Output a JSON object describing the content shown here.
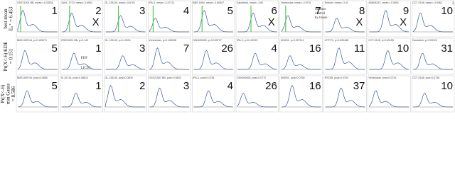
{
  "corner_label": "2",
  "rows": [
    {
      "label": [
        "best mean",
        "Eₛ⁺ = 6.453"
      ],
      "panels": [
        {
          "title": "GSE21501 BB, mean=-4.02634",
          "rank": "1",
          "mark": null
        },
        {
          "title": "JAH1, 3713, mean=-3.6992",
          "rank": "2",
          "mark": "X"
        },
        {
          "title": "GL-155-55, mean=-5.6701",
          "rank": "3",
          "mark": null
        },
        {
          "title": "IPA-3, mean=-3.47722",
          "rank": "4",
          "mark": null
        },
        {
          "title": "BNS-5464, mean=-3.60847",
          "rank": "5",
          "mark": null
        },
        {
          "title": "Salubrinal, mean=-3.62",
          "rank": "6",
          "mark": "X"
        },
        {
          "title": "Venetoclax, mean=-3.9732",
          "rank": "7",
          "mark": null
        },
        {
          "title": "Eribulin, mean=-3.41",
          "rank": "8",
          "mark": "X"
        },
        {
          "title": "AS605242, mean=-3.3993",
          "rank": "9",
          "mark": "X"
        },
        {
          "title": "CCT-0108, mean=-3.9462",
          "rank": "10",
          "mark": null
        }
      ]
    },
    {
      "label": [
        "Pr(X<-6) KDE",
        "= 0.151"
      ],
      "panels": [
        {
          "title": "BMS-509744, p=0.150071",
          "rank": "5",
          "mark": null
        },
        {
          "title": "GSE21501 BB, p=0.142",
          "rank": "1",
          "mark": null
        },
        {
          "title": "GL-155-55, p=0.13931",
          "rank": "3",
          "mark": null
        },
        {
          "title": "Venetoclax, p=0.108335",
          "rank": "7",
          "mark": null
        },
        {
          "title": "GSK690693, p=0.105737",
          "rank": "26",
          "mark": null
        },
        {
          "title": "IPA-3, p=0.102221",
          "rank": "4",
          "mark": null
        },
        {
          "title": "KIN001, p=0.097112",
          "rank": "16",
          "mark": null
        },
        {
          "title": "LFP774, p=0.093465",
          "rank": "11",
          "mark": null
        },
        {
          "title": "CCT-0108, p=0.09155",
          "rank": "10",
          "mark": null
        },
        {
          "title": "Dactolisib, p=0.09124",
          "rank": "31",
          "mark": null
        }
      ]
    },
    {
      "label": [
        "Pr(X<-6)",
        "min Gauss",
        "= 8.586"
      ],
      "panels": [
        {
          "title": "BMS-509744, pval=0.0885",
          "rank": "5",
          "mark": null
        },
        {
          "title": "IC-87114, pval=0.08612",
          "rank": "1",
          "mark": null
        },
        {
          "title": "GL-155-55, pval=0.0809",
          "rank": "2",
          "mark": null
        },
        {
          "title": "GSE21501 BB, pval=0.0803",
          "rank": "3",
          "mark": null
        },
        {
          "title": "IPA-3, pval=0.0781",
          "rank": "4",
          "mark": null
        },
        {
          "title": "GSK690693, pval=0.0772",
          "rank": "26",
          "mark": null
        },
        {
          "title": "KIN001, pval=0.0760",
          "rank": "16",
          "mark": null
        },
        {
          "title": "RSC98, pval=0.0752",
          "rank": "37",
          "mark": null
        },
        {
          "title": "Venetoclax, pval=0.0741",
          "rank": null,
          "mark": null
        },
        {
          "title": "CCT-0108, pval=0.0736",
          "rank": "10",
          "mark": null
        }
      ]
    }
  ],
  "annotations": {
    "control": [
      "random",
      "control",
      "by tissue"
    ],
    "pdf": "PDF",
    "lic50": "LIC50"
  }
}
